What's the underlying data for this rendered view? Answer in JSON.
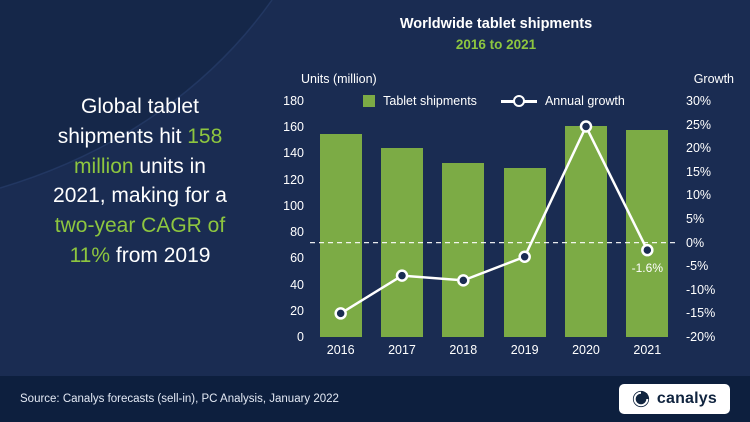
{
  "headline": {
    "segments": [
      {
        "text": "Global tablet",
        "highlight": false,
        "break_after": true
      },
      {
        "text": "shipments hit ",
        "highlight": false,
        "break_after": false
      },
      {
        "text": "158",
        "highlight": true,
        "break_after": true
      },
      {
        "text": "million",
        "highlight": true,
        "break_after": false
      },
      {
        "text": " units in",
        "highlight": false,
        "break_after": true
      },
      {
        "text": "2021, making for a",
        "highlight": false,
        "break_after": true
      },
      {
        "text": "two-year CAGR of",
        "highlight": true,
        "break_after": true
      },
      {
        "text": "11%",
        "highlight": true,
        "break_after": false
      },
      {
        "text": " from 2019",
        "highlight": false,
        "break_after": false
      }
    ]
  },
  "chart": {
    "title": "Worldwide tablet shipments",
    "subtitle": "2016 to 2021",
    "left_axis_label": "Units (million)",
    "right_axis_label": "Growth",
    "legend": [
      {
        "label": "Tablet shipments",
        "type": "bar"
      },
      {
        "label": "Annual growth",
        "type": "line"
      }
    ],
    "annotation": "-1.6%"
  },
  "chart_data": {
    "type": "bar",
    "categories": [
      "2016",
      "2017",
      "2018",
      "2019",
      "2020",
      "2021"
    ],
    "series": [
      {
        "name": "Tablet shipments",
        "type": "bar",
        "axis": "left",
        "values": [
          155,
          144,
          133,
          129,
          161,
          158
        ]
      },
      {
        "name": "Annual growth",
        "type": "line",
        "axis": "right",
        "values": [
          -15,
          -7,
          -8,
          -3,
          24.6,
          -1.6
        ]
      }
    ],
    "title": "Worldwide tablet shipments",
    "subtitle": "2016 to 2021",
    "left_axis": {
      "label": "Units (million)",
      "min": 0,
      "max": 180,
      "step": 20
    },
    "right_axis": {
      "label": "Growth",
      "min": -20,
      "max": 30,
      "step": 5,
      "format": "percent"
    },
    "zero_line": {
      "axis": "right",
      "value": 0,
      "style": "dashed"
    },
    "annotations": [
      {
        "category": "2021",
        "series": "Annual growth",
        "text": "-1.6%"
      }
    ],
    "legend_position": "top",
    "grid": false
  },
  "footer": {
    "source": "Source: Canalys forecasts (sell-in), PC Analysis, January 2022",
    "logo_text": "canalys"
  },
  "colors": {
    "background": "#1a2c52",
    "footer_background": "#0d1f3e",
    "bar_green": "#7cab45",
    "accent_green": "#8dc63f",
    "line_white": "#ffffff"
  }
}
